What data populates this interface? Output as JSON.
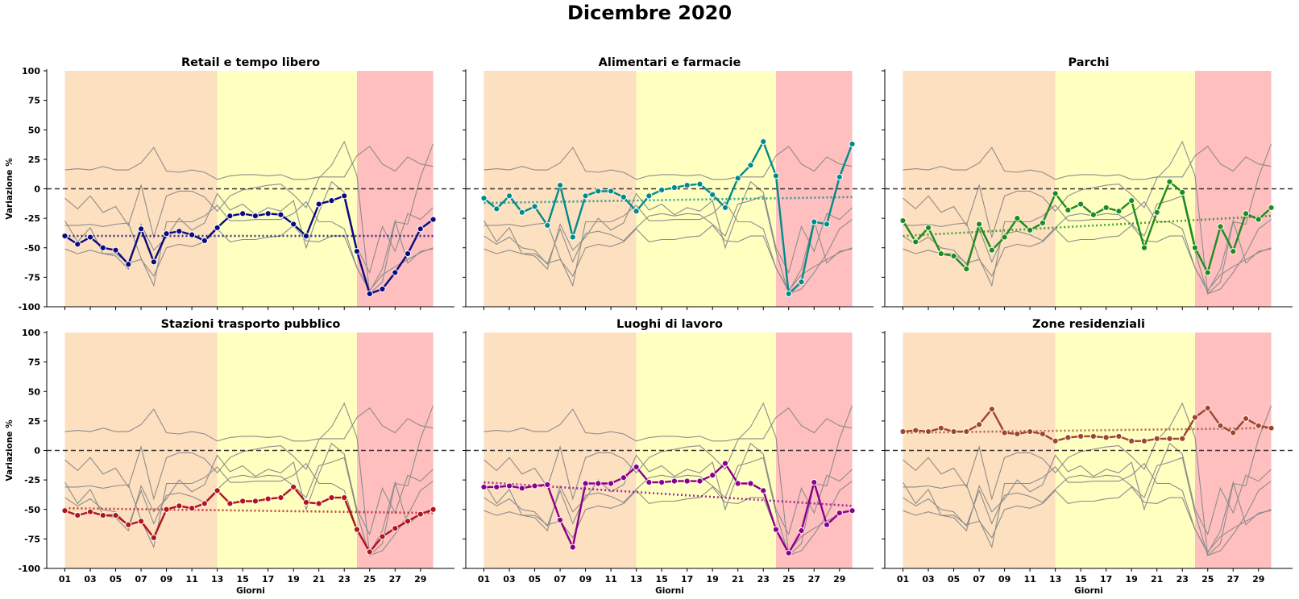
{
  "suptitle": "Dicembre 2020",
  "colors": {
    "arancione": "#fde0bf",
    "gialla": "#ffffc0",
    "rossa": "#ffbfbf",
    "gray_lines": "#8c8c8c",
    "zero_line": "#333333"
  },
  "chart_data": [
    {
      "type": "line",
      "title": "Retail e tempo libero",
      "xlabel": "",
      "ylabel": "Variazione %",
      "color": "#0a0a80",
      "days": [
        "01",
        "02",
        "03",
        "04",
        "05",
        "06",
        "07",
        "08",
        "09",
        "10",
        "11",
        "12",
        "13",
        "14",
        "15",
        "16",
        "17",
        "18",
        "19",
        "20",
        "21",
        "22",
        "23",
        "24",
        "25",
        "26",
        "27",
        "28",
        "29",
        "30"
      ],
      "values": [
        -40,
        -47,
        -41,
        -50,
        -52,
        -64,
        -34,
        -62,
        -38,
        -36,
        -39,
        -44,
        -33,
        -23,
        -21,
        -23,
        -21,
        -22,
        -30,
        -40,
        -13,
        -10,
        -6,
        -53,
        -89,
        -85,
        -71,
        -55,
        -34,
        -26
      ],
      "trend": [
        -40,
        -40
      ],
      "ylim": [
        -100,
        100
      ]
    },
    {
      "type": "line",
      "title": "Alimentari e farmacie",
      "xlabel": "",
      "ylabel": "",
      "color": "#008b8b",
      "days": [
        "01",
        "02",
        "03",
        "04",
        "05",
        "06",
        "07",
        "08",
        "09",
        "10",
        "11",
        "12",
        "13",
        "14",
        "15",
        "16",
        "17",
        "18",
        "19",
        "20",
        "21",
        "22",
        "23",
        "24",
        "25",
        "26",
        "27",
        "28",
        "29",
        "30"
      ],
      "values": [
        -8,
        -17,
        -6,
        -20,
        -15,
        -31,
        3,
        -41,
        -6,
        -2,
        -2,
        -7,
        -19,
        -6,
        -1,
        1,
        3,
        4,
        -5,
        -16,
        9,
        20,
        40,
        11,
        -89,
        -79,
        -28,
        -30,
        10,
        38
      ],
      "trend": [
        -12,
        -7
      ],
      "ylim": [
        -100,
        100
      ]
    },
    {
      "type": "line",
      "title": "Parchi",
      "xlabel": "",
      "ylabel": "",
      "color": "#1e8b1e",
      "days": [
        "01",
        "02",
        "03",
        "04",
        "05",
        "06",
        "07",
        "08",
        "09",
        "10",
        "11",
        "12",
        "13",
        "14",
        "15",
        "16",
        "17",
        "18",
        "19",
        "20",
        "21",
        "22",
        "23",
        "24",
        "25",
        "26",
        "27",
        "28",
        "29",
        "30"
      ],
      "values": [
        -27,
        -45,
        -33,
        -55,
        -57,
        -68,
        -30,
        -52,
        -41,
        -25,
        -35,
        -29,
        -4,
        -18,
        -13,
        -22,
        -16,
        -19,
        -10,
        -50,
        -20,
        6,
        -3,
        -50,
        -71,
        -32,
        -53,
        -21,
        -26,
        -16
      ],
      "trend": [
        -40,
        -23
      ],
      "ylim": [
        -100,
        100
      ]
    },
    {
      "type": "line",
      "title": "Stazioni trasporto pubblico",
      "xlabel": "Giorni",
      "ylabel": "Variazione %",
      "color": "#b0141e",
      "days": [
        "01",
        "02",
        "03",
        "04",
        "05",
        "06",
        "07",
        "08",
        "09",
        "10",
        "11",
        "12",
        "13",
        "14",
        "15",
        "16",
        "17",
        "18",
        "19",
        "20",
        "21",
        "22",
        "23",
        "24",
        "25",
        "26",
        "27",
        "28",
        "29",
        "30"
      ],
      "values": [
        -51,
        -55,
        -52,
        -55,
        -55,
        -63,
        -60,
        -74,
        -50,
        -47,
        -49,
        -45,
        -34,
        -45,
        -43,
        -43,
        -41,
        -40,
        -31,
        -44,
        -45,
        -40,
        -40,
        -67,
        -86,
        -73,
        -66,
        -60,
        -54,
        -50
      ],
      "trend": [
        -49,
        -53
      ],
      "ylim": [
        -100,
        100
      ]
    },
    {
      "type": "line",
      "title": "Luoghi di lavoro",
      "xlabel": "Giorni",
      "ylabel": "",
      "color": "#8b008b",
      "days": [
        "01",
        "02",
        "03",
        "04",
        "05",
        "06",
        "07",
        "08",
        "09",
        "10",
        "11",
        "12",
        "13",
        "14",
        "15",
        "16",
        "17",
        "18",
        "19",
        "20",
        "21",
        "22",
        "23",
        "24",
        "25",
        "26",
        "27",
        "28",
        "29",
        "30"
      ],
      "values": [
        -31,
        -31,
        -30,
        -32,
        -30,
        -29,
        -59,
        -82,
        -28,
        -28,
        -28,
        -23,
        -14,
        -27,
        -27,
        -26,
        -26,
        -26,
        -21,
        -11,
        -28,
        -28,
        -34,
        -67,
        -87,
        -68,
        -27,
        -63,
        -53,
        -51
      ],
      "trend": [
        -27,
        -47
      ],
      "ylim": [
        -100,
        100
      ]
    },
    {
      "type": "line",
      "title": "Zone residenziali",
      "xlabel": "Giorni",
      "ylabel": "",
      "color": "#a0462d",
      "days": [
        "01",
        "02",
        "03",
        "04",
        "05",
        "06",
        "07",
        "08",
        "09",
        "10",
        "11",
        "12",
        "13",
        "14",
        "15",
        "16",
        "17",
        "18",
        "19",
        "20",
        "21",
        "22",
        "23",
        "24",
        "25",
        "26",
        "27",
        "28",
        "29",
        "30"
      ],
      "values": [
        16,
        17,
        16,
        19,
        16,
        16,
        22,
        35,
        15,
        14,
        16,
        14,
        8,
        11,
        12,
        12,
        11,
        12,
        8,
        8,
        10,
        10,
        10,
        28,
        36,
        21,
        15,
        27,
        21,
        19
      ],
      "trend": [
        15,
        19
      ],
      "ylim": [
        -100,
        100
      ]
    }
  ],
  "zones": [
    {
      "name": "arancione",
      "from": 1,
      "to": 13
    },
    {
      "name": "gialla",
      "from": 13,
      "to": 24
    },
    {
      "name": "rossa",
      "from": 24,
      "to": 30
    }
  ],
  "xticks": [
    "01",
    "03",
    "05",
    "07",
    "09",
    "11",
    "13",
    "15",
    "17",
    "19",
    "21",
    "23",
    "25",
    "27",
    "29"
  ],
  "yticks": [
    "100",
    "75",
    "50",
    "25",
    "0",
    "-25",
    "-50",
    "-75",
    "-100"
  ]
}
